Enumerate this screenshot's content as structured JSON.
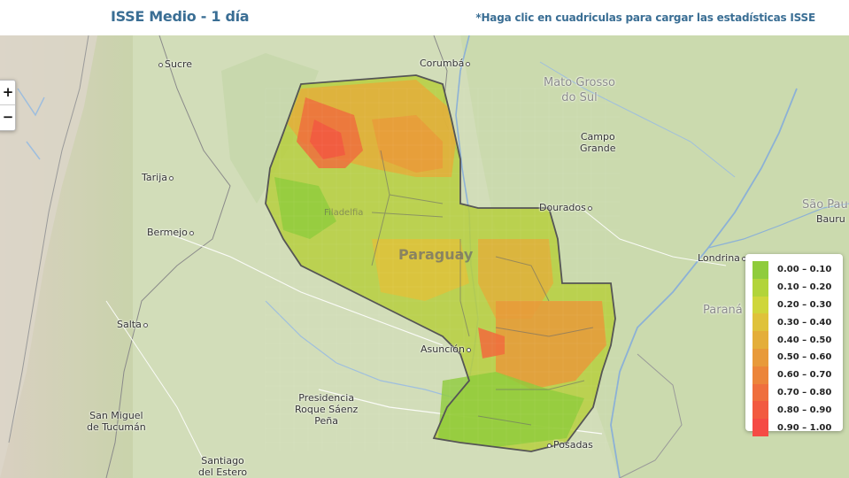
{
  "header": {
    "title": "ISSE Medio - 1 día",
    "hint": "*Haga clic en cuadriculas para cargar las estadísticas ISSE"
  },
  "zoom": {
    "zoom_in": "+",
    "zoom_out": "−"
  },
  "map": {
    "country_label": "Paraguay",
    "places": [
      {
        "name": "Sucre",
        "key": "sucre"
      },
      {
        "name": "Corumbá",
        "key": "corumba"
      },
      {
        "name": "Tarija",
        "key": "tarija"
      },
      {
        "name": "Bermejo",
        "key": "bermejo"
      },
      {
        "name": "Filadelfia",
        "key": "filadelfia"
      },
      {
        "name": "Salta",
        "key": "salta"
      },
      {
        "name": "Asunción",
        "key": "asuncion"
      },
      {
        "name": "San Miguel de Tucumán",
        "key": "tucuman"
      },
      {
        "name": "Presidencia Roque Sáenz Peña",
        "key": "saenz_pena"
      },
      {
        "name": "Santiago del Estero",
        "key": "santiago"
      },
      {
        "name": "Posadas",
        "key": "posadas"
      },
      {
        "name": "Dourados",
        "key": "dourados"
      },
      {
        "name": "Campo Grande",
        "key": "campo_grande"
      },
      {
        "name": "Mato Grosso do Sul",
        "key": "mato_grosso"
      },
      {
        "name": "Londrina",
        "key": "londrina"
      },
      {
        "name": "São Paulo",
        "key": "sao_paulo"
      },
      {
        "name": "Bauru",
        "key": "bauru"
      },
      {
        "name": "Paraná",
        "key": "parana"
      }
    ]
  },
  "labels": {
    "sucre": "Sucre",
    "corumba": "Corumbá",
    "tarija": "Tarija",
    "bermejo": "Bermejo",
    "filadelfia": "Filadelfia",
    "salta": "Salta",
    "asuncion": "Asunción",
    "tucuman_1": "San Miguel",
    "tucuman_2": "de Tucumán",
    "saenz_1": "Presidencia",
    "saenz_2": "Roque Sáenz",
    "saenz_3": "Peña",
    "santiago_1": "Santiago",
    "santiago_2": "del Estero",
    "posadas": "Posadas",
    "dourados": "Dourados",
    "campo_1": "Campo",
    "campo_2": "Grande",
    "mato_1": "Mato Grosso",
    "mato_2": "do Sul",
    "londrina": "Londrina",
    "sao_paulo": "São Pau",
    "bauru": "Bauru",
    "parana": "Paraná",
    "country": "Paraguay"
  },
  "legend": {
    "items": [
      {
        "range": "0.00 – 0.10",
        "color": "#8fcc3c"
      },
      {
        "range": "0.10 – 0.20",
        "color": "#b2d43a"
      },
      {
        "range": "0.20 – 0.30",
        "color": "#cfd63b"
      },
      {
        "range": "0.30 – 0.40",
        "color": "#dfc23b"
      },
      {
        "range": "0.40 – 0.50",
        "color": "#e4ae3a"
      },
      {
        "range": "0.50 – 0.60",
        "color": "#e89a3a"
      },
      {
        "range": "0.60 – 0.70",
        "color": "#ec853a"
      },
      {
        "range": "0.70 – 0.80",
        "color": "#ef6f3d"
      },
      {
        "range": "0.80 – 0.90",
        "color": "#f25a40"
      },
      {
        "range": "0.90 – 1.00",
        "color": "#f54a45"
      }
    ]
  }
}
